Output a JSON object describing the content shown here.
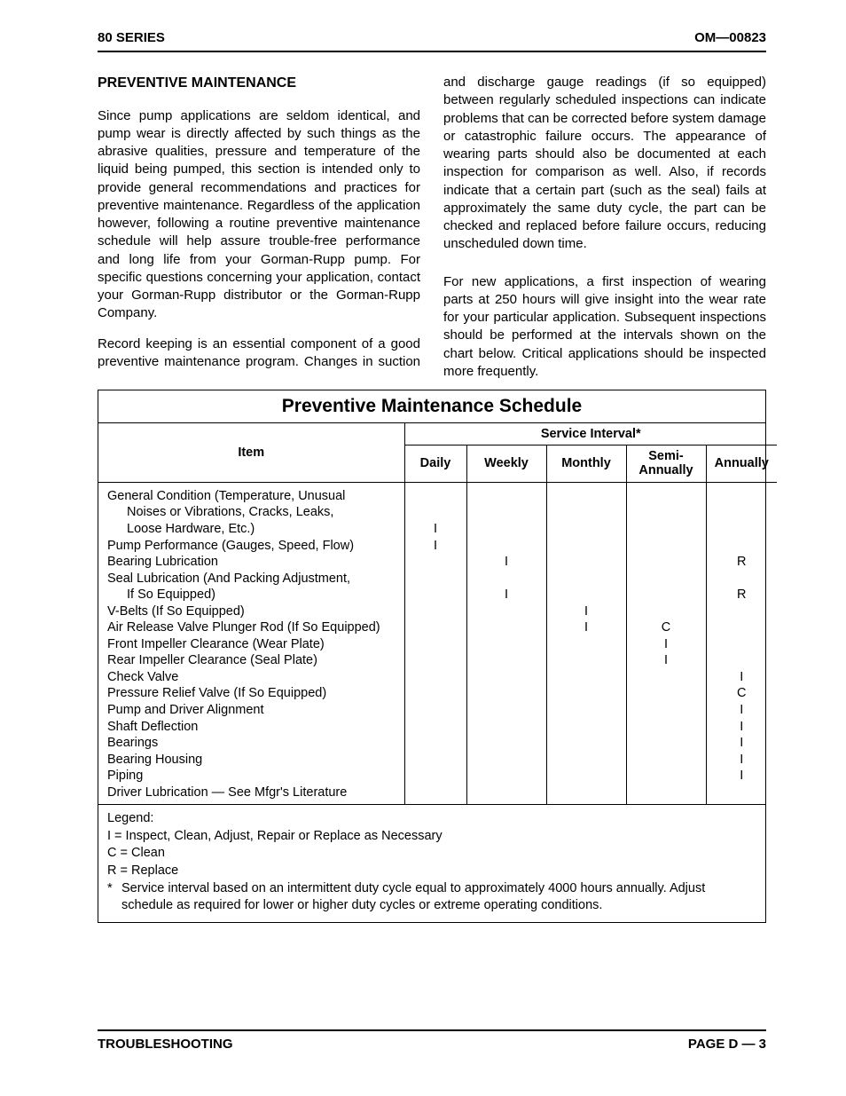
{
  "header": {
    "left": "80 SERIES",
    "right": "OM—00823"
  },
  "section_title": "PREVENTIVE MAINTENANCE",
  "paragraphs": {
    "p1": "Since pump applications are seldom identical, and pump wear is directly affected by such things as the abrasive qualities, pressure and temperature of the liquid being pumped, this section is intended only to provide general recommendations and practices for preventive maintenance. Regardless of the application however, following a routine preventive maintenance schedule will help assure trouble-free performance and long life from your Gorman-Rupp pump. For specific questions concerning your application, contact your Gorman-Rupp distributor or the Gorman-Rupp Company.",
    "p2": "Record keeping is an essential component of a good preventive maintenance program. Changes in suction and discharge gauge readings (if so equipped) between regularly scheduled inspections can indicate problems that can be corrected before system damage or catastrophic failure occurs. The appearance of wearing parts should also be documented at each inspection for comparison as well. Also, if records indicate that a certain part (such as the seal) fails at approximately the same duty cycle, the part can be checked and replaced before failure occurs, reducing unscheduled down time.",
    "p3": "For new applications, a first inspection of wearing parts at 250 hours will give insight into the wear rate for your particular application. Subsequent inspections should be performed at the intervals shown on the chart below. Critical applications should be inspected more frequently."
  },
  "schedule": {
    "title": "Preventive Maintenance Schedule",
    "header_item": "Item",
    "header_service": "Service Interval*",
    "cols": [
      "Daily",
      "Weekly",
      "Monthly",
      "Semi-\nAnnually",
      "Annually"
    ],
    "rows": [
      {
        "item": "General Condition (Temperature, Unusual Noises or Vibrations, Cracks, Leaks, Loose Hardware, Etc.)",
        "indent_continuation": true,
        "marks": [
          "I",
          "",
          "",
          "",
          ""
        ],
        "lines": 3,
        "mark_line": 3
      },
      {
        "item": "Pump Performance (Gauges, Speed, Flow)",
        "marks": [
          "I",
          "",
          "",
          "",
          ""
        ],
        "lines": 1,
        "mark_line": 1
      },
      {
        "item": "Bearing Lubrication",
        "marks": [
          "",
          "I",
          "",
          "",
          "R"
        ],
        "lines": 1,
        "mark_line": 1
      },
      {
        "item": "Seal Lubrication (And Packing Adjustment, If So Equipped)",
        "indent_continuation": true,
        "marks": [
          "",
          "I",
          "",
          "",
          "R"
        ],
        "lines": 2,
        "mark_line": 2
      },
      {
        "item": "V-Belts (If So Equipped)",
        "marks": [
          "",
          "",
          "I",
          "",
          ""
        ],
        "lines": 1,
        "mark_line": 1
      },
      {
        "item": "Air Release Valve Plunger Rod (If So Equipped)",
        "marks": [
          "",
          "",
          "I",
          "C",
          ""
        ],
        "lines": 1,
        "mark_line": 1
      },
      {
        "item": "Front Impeller Clearance (Wear Plate)",
        "marks": [
          "",
          "",
          "",
          "I",
          ""
        ],
        "lines": 1,
        "mark_line": 1
      },
      {
        "item": "Rear Impeller Clearance (Seal Plate)",
        "marks": [
          "",
          "",
          "",
          "I",
          ""
        ],
        "lines": 1,
        "mark_line": 1
      },
      {
        "item": "Check Valve",
        "marks": [
          "",
          "",
          "",
          "",
          "I"
        ],
        "lines": 1,
        "mark_line": 1
      },
      {
        "item": "Pressure Relief Valve (If So Equipped)",
        "marks": [
          "",
          "",
          "",
          "",
          "C"
        ],
        "lines": 1,
        "mark_line": 1
      },
      {
        "item": "Pump and Driver Alignment",
        "marks": [
          "",
          "",
          "",
          "",
          "I"
        ],
        "lines": 1,
        "mark_line": 1
      },
      {
        "item": "Shaft Deflection",
        "marks": [
          "",
          "",
          "",
          "",
          "I"
        ],
        "lines": 1,
        "mark_line": 1
      },
      {
        "item": "Bearings",
        "marks": [
          "",
          "",
          "",
          "",
          "I"
        ],
        "lines": 1,
        "mark_line": 1
      },
      {
        "item": "Bearing Housing",
        "marks": [
          "",
          "",
          "",
          "",
          "I"
        ],
        "lines": 1,
        "mark_line": 1
      },
      {
        "item": "Piping",
        "marks": [
          "",
          "",
          "",
          "",
          "I"
        ],
        "lines": 1,
        "mark_line": 1
      },
      {
        "item": "Driver Lubrication — See Mfgr's Literature",
        "marks": [
          "",
          "",
          "",
          "",
          ""
        ],
        "lines": 1,
        "mark_line": 1
      }
    ],
    "legend": {
      "title": "Legend:",
      "lines": [
        "I  =  Inspect, Clean, Adjust, Repair or Replace as Necessary",
        "C =  Clean",
        "R =  Replace"
      ],
      "note_star": "*",
      "note": "Service interval based on an intermittent duty cycle equal to approximately 4000 hours annually. Adjust schedule as required for lower or higher duty cycles or extreme operating conditions."
    }
  },
  "footer": {
    "left": "TROUBLESHOOTING",
    "right": "PAGE D — 3"
  }
}
